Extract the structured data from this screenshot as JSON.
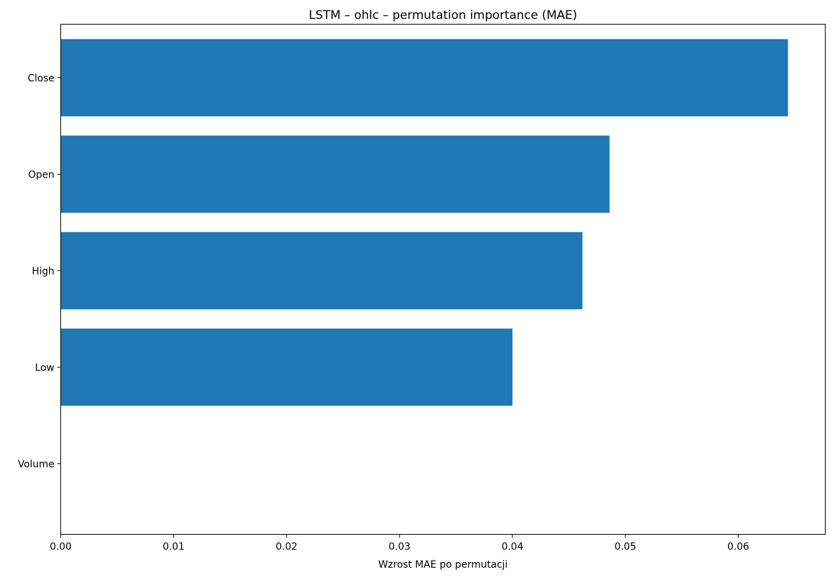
{
  "chart_data": {
    "type": "bar",
    "orientation": "horizontal",
    "title": "LSTM – ohlc – permutation importance (MAE)",
    "xlabel": "Wzrost MAE po permutacji",
    "ylabel": "",
    "categories": [
      "Close",
      "Open",
      "High",
      "Low",
      "Volume"
    ],
    "values": [
      0.0644,
      0.0486,
      0.0462,
      0.04,
      0.0
    ],
    "xlim": [
      0,
      0.0677
    ],
    "xticks": [
      "0.00",
      "0.01",
      "0.02",
      "0.03",
      "0.04",
      "0.05",
      "0.06"
    ],
    "bar_color": "#1f77b4",
    "grid": false,
    "legend": "none"
  }
}
